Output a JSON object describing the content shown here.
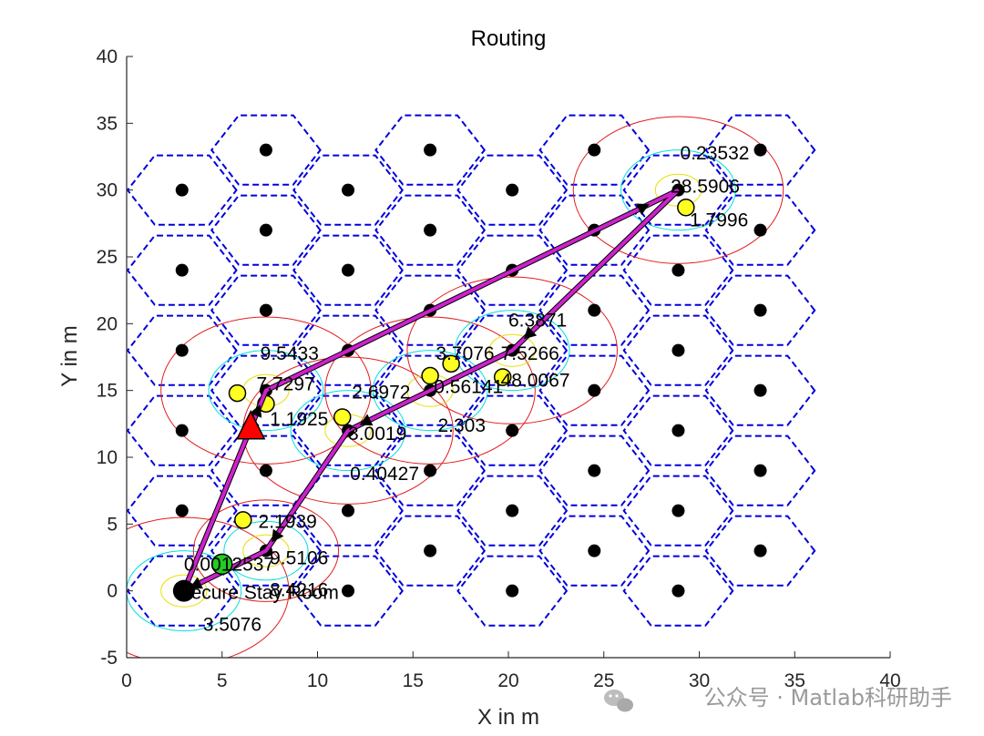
{
  "chart_data": {
    "type": "scatter",
    "title": "Routing",
    "xlabel": "X in m",
    "ylabel": "Y in m",
    "xlim": [
      0,
      40
    ],
    "ylim": [
      -5,
      40
    ],
    "xticks": [
      "0",
      "5",
      "10",
      "15",
      "20",
      "25",
      "30",
      "35",
      "40"
    ],
    "yticks": [
      "-5",
      "0",
      "5",
      "10",
      "15",
      "20",
      "25",
      "30",
      "35",
      "40"
    ],
    "grid": "off",
    "hex_cell_radius": 3,
    "hex_centers": [
      [
        2.9,
        0
      ],
      [
        2.9,
        6
      ],
      [
        2.9,
        12
      ],
      [
        2.9,
        18
      ],
      [
        2.9,
        24
      ],
      [
        2.9,
        30
      ],
      [
        7.3,
        3
      ],
      [
        7.3,
        9
      ],
      [
        7.3,
        15
      ],
      [
        7.3,
        21
      ],
      [
        7.3,
        27
      ],
      [
        7.3,
        33
      ],
      [
        11.6,
        0
      ],
      [
        11.6,
        6
      ],
      [
        11.6,
        12
      ],
      [
        11.6,
        18
      ],
      [
        11.6,
        24
      ],
      [
        11.6,
        30
      ],
      [
        15.9,
        3
      ],
      [
        15.9,
        9
      ],
      [
        15.9,
        15
      ],
      [
        15.9,
        21
      ],
      [
        15.9,
        27
      ],
      [
        15.9,
        33
      ],
      [
        20.2,
        0
      ],
      [
        20.2,
        6
      ],
      [
        20.2,
        12
      ],
      [
        20.2,
        18
      ],
      [
        20.2,
        24
      ],
      [
        20.2,
        30
      ],
      [
        24.5,
        3
      ],
      [
        24.5,
        9
      ],
      [
        24.5,
        15
      ],
      [
        24.5,
        21
      ],
      [
        24.5,
        27
      ],
      [
        24.5,
        33
      ],
      [
        28.9,
        0
      ],
      [
        28.9,
        6
      ],
      [
        28.9,
        12
      ],
      [
        28.9,
        18
      ],
      [
        28.9,
        24
      ],
      [
        28.9,
        30
      ],
      [
        33.2,
        3
      ],
      [
        33.2,
        9
      ],
      [
        33.2,
        15
      ],
      [
        33.2,
        21
      ],
      [
        33.2,
        27
      ],
      [
        33.2,
        33
      ]
    ],
    "range_nodes": [
      {
        "x": 3.0,
        "y": 0.0,
        "r_red": 5.5,
        "r_cyan": 3.0,
        "r_yellow": 1.2
      },
      {
        "x": 7.3,
        "y": 3.0,
        "r_red": 3.8,
        "r_cyan": 2.2,
        "r_yellow": 1.2
      },
      {
        "x": 7.3,
        "y": 15.0,
        "r_red": 5.5,
        "r_cyan": 3.0,
        "r_yellow": 1.2
      },
      {
        "x": 11.6,
        "y": 12.0,
        "r_red": 5.5,
        "r_cyan": 3.0,
        "r_yellow": 1.2
      },
      {
        "x": 15.9,
        "y": 15.0,
        "r_red": 5.5,
        "r_cyan": 3.0,
        "r_yellow": 1.2
      },
      {
        "x": 20.2,
        "y": 18.0,
        "r_red": 5.5,
        "r_cyan": 3.0,
        "r_yellow": 1.2
      },
      {
        "x": 28.9,
        "y": 30.0,
        "r_red": 5.5,
        "r_cyan": 3.0,
        "r_yellow": 1.2
      }
    ],
    "yellow_nodes": [
      [
        5.8,
        14.8
      ],
      [
        7.3,
        14.0
      ],
      [
        11.3,
        13.0
      ],
      [
        15.9,
        16.1
      ],
      [
        17.0,
        17.0
      ],
      [
        19.7,
        16.0
      ],
      [
        6.1,
        5.3
      ],
      [
        29.3,
        28.7
      ]
    ],
    "triangle_node": {
      "x": 6.5,
      "y": 12.2,
      "color": "#ff0000"
    },
    "green_node": {
      "x": 5.0,
      "y": 2.0,
      "color": "#22cc22"
    },
    "source_node": {
      "x": 3.0,
      "y": 0.0
    },
    "routes": [
      [
        [
          3.0,
          0.0
        ],
        [
          7.3,
          15.0
        ],
        [
          28.9,
          30.0
        ],
        [
          20.2,
          18.0
        ],
        [
          11.6,
          12.0
        ],
        [
          7.3,
          3.0
        ],
        [
          3.0,
          0.0
        ]
      ]
    ],
    "labels": [
      {
        "text": "0.23532",
        "x": 29.0,
        "y": 32.3
      },
      {
        "text": "28.5906",
        "x": 28.5,
        "y": 29.8
      },
      {
        "text": "1.7996",
        "x": 29.5,
        "y": 27.3
      },
      {
        "text": "6.3871",
        "x": 20.0,
        "y": 19.8
      },
      {
        "text": "3.7076",
        "x": 16.2,
        "y": 17.3
      },
      {
        "text": "7.5266",
        "x": 19.6,
        "y": 17.3
      },
      {
        "text": "0.56141",
        "x": 16.1,
        "y": 14.8
      },
      {
        "text": "48.0067",
        "x": 19.6,
        "y": 15.3
      },
      {
        "text": "9.5433",
        "x": 7.0,
        "y": 17.3
      },
      {
        "text": "7.7297",
        "x": 6.8,
        "y": 15.0
      },
      {
        "text": "1.1925",
        "x": 7.5,
        "y": 12.4
      },
      {
        "text": "2.6972",
        "x": 11.8,
        "y": 14.4
      },
      {
        "text": "3.0019",
        "x": 11.6,
        "y": 11.3
      },
      {
        "text": "2.303",
        "x": 16.3,
        "y": 11.9
      },
      {
        "text": "0.40427",
        "x": 11.7,
        "y": 8.3
      },
      {
        "text": "2.1939",
        "x": 6.9,
        "y": 4.7
      },
      {
        "text": "9.5106",
        "x": 7.5,
        "y": 2.0
      },
      {
        "text": "0.0012537",
        "x": 3.0,
        "y": 1.5
      },
      {
        "text": "8.4216",
        "x": 7.5,
        "y": -0.4
      },
      {
        "text": "Secure Stay Room",
        "x": 2.7,
        "y": -0.6
      },
      {
        "text": "3.5076",
        "x": 4.0,
        "y": -3.0
      }
    ]
  },
  "watermark": "公众号 · Matlab科研助手"
}
